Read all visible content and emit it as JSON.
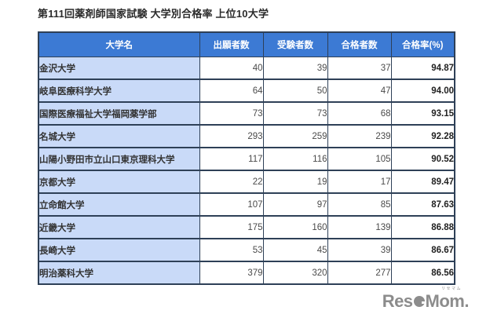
{
  "page": {
    "title": "第111回薬剤師国家試験 大学別合格率 上位10大学"
  },
  "table": {
    "columns": [
      "大学名",
      "出願者数",
      "受験者数",
      "合格者数",
      "合格率(%)"
    ],
    "rows": [
      {
        "name": "金沢大学",
        "applicants": "40",
        "examinees": "39",
        "passers": "37",
        "rate": "94.87"
      },
      {
        "name": "岐阜医療科学大学",
        "applicants": "64",
        "examinees": "50",
        "passers": "47",
        "rate": "94.00"
      },
      {
        "name": "国際医療福祉大学福岡薬学部",
        "applicants": "73",
        "examinees": "73",
        "passers": "68",
        "rate": "93.15"
      },
      {
        "name": "名城大学",
        "applicants": "293",
        "examinees": "259",
        "passers": "239",
        "rate": "92.28"
      },
      {
        "name": "山陽小野田市立山口東京理科大学",
        "applicants": "117",
        "examinees": "116",
        "passers": "105",
        "rate": "90.52"
      },
      {
        "name": "京都大学",
        "applicants": "22",
        "examinees": "19",
        "passers": "17",
        "rate": "89.47"
      },
      {
        "name": "立命館大学",
        "applicants": "107",
        "examinees": "97",
        "passers": "85",
        "rate": "87.63"
      },
      {
        "name": "近畿大学",
        "applicants": "175",
        "examinees": "160",
        "passers": "139",
        "rate": "86.88"
      },
      {
        "name": "長崎大学",
        "applicants": "53",
        "examinees": "45",
        "passers": "39",
        "rate": "86.67"
      },
      {
        "name": "明治薬科大学",
        "applicants": "379",
        "examinees": "320",
        "passers": "277",
        "rate": "86.56"
      }
    ]
  },
  "logo": {
    "pre": "Res",
    "stylized_e": "e",
    "post": "Mom.",
    "ruby": "リセマム"
  },
  "colors": {
    "header_bg": "#3C7AD4",
    "name_cell_bg": "#C9DAF8",
    "border": "#2E4057",
    "logo_gray": "#8C8C8C"
  }
}
